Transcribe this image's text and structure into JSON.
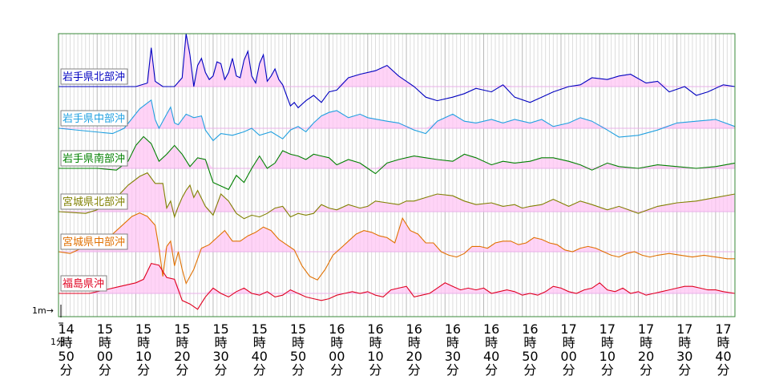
{
  "chart_data": {
    "type": "line",
    "title": "",
    "xlabel": "",
    "ylabel": "",
    "time_ticks": [
      [
        "14",
        "時",
        "50",
        "分"
      ],
      [
        "15",
        "時",
        "00",
        "分"
      ],
      [
        "15",
        "時",
        "10",
        "分"
      ],
      [
        "15",
        "時",
        "20",
        "分"
      ],
      [
        "15",
        "時",
        "30",
        "分"
      ],
      [
        "15",
        "時",
        "40",
        "分"
      ],
      [
        "15",
        "時",
        "50",
        "分"
      ],
      [
        "16",
        "時",
        "00",
        "分"
      ],
      [
        "16",
        "時",
        "10",
        "分"
      ],
      [
        "16",
        "時",
        "20",
        "分"
      ],
      [
        "16",
        "時",
        "30",
        "分"
      ],
      [
        "16",
        "時",
        "40",
        "分"
      ],
      [
        "16",
        "時",
        "50",
        "分"
      ],
      [
        "17",
        "時",
        "00",
        "分"
      ],
      [
        "17",
        "時",
        "10",
        "分"
      ],
      [
        "17",
        "時",
        "20",
        "分"
      ],
      [
        "17",
        "時",
        "30",
        "分"
      ],
      [
        "17",
        "時",
        "40",
        "分"
      ]
    ],
    "scale_label": "1m→",
    "time_scale_label": "1分",
    "x_unit": "minutes after 14:50",
    "x_range": [
      0,
      175
    ],
    "y_unit": "m",
    "series": [
      {
        "name": "岩手県北部沖",
        "color": "#0000c0",
        "x": [
          0,
          20,
          23,
          24,
          25,
          27,
          30,
          32,
          33,
          34,
          35,
          36,
          37,
          38,
          39,
          40,
          41,
          42,
          43,
          44,
          45,
          46,
          47,
          48,
          49,
          50,
          51,
          52,
          53,
          54,
          55,
          56,
          57,
          58,
          59,
          60,
          61,
          62,
          64,
          66,
          68,
          70,
          72,
          75,
          78,
          82,
          85,
          88,
          92,
          95,
          98,
          102,
          105,
          108,
          112,
          115,
          118,
          122,
          125,
          128,
          132,
          135,
          138,
          142,
          145,
          148,
          152,
          155,
          158,
          162,
          165,
          168,
          172,
          175
        ],
        "y": [
          0,
          0,
          0.2,
          2.2,
          0.3,
          0,
          0,
          0.5,
          3.0,
          1.8,
          0,
          1.2,
          1.6,
          0.8,
          0.4,
          0.6,
          1.4,
          1.3,
          0.4,
          0.8,
          1.6,
          0.6,
          0.5,
          1.5,
          2.0,
          0.6,
          0.2,
          1.3,
          1.8,
          0.3,
          0.6,
          1.0,
          0.4,
          0.1,
          -0.5,
          -1.1,
          -0.9,
          -1.2,
          -0.8,
          -0.5,
          -0.9,
          -0.3,
          -0.2,
          0.5,
          0.7,
          0.9,
          1.2,
          0.6,
          0,
          -0.6,
          -0.8,
          -0.6,
          -0.4,
          -0.1,
          -0.3,
          0.1,
          -0.6,
          -0.9,
          -0.6,
          -0.3,
          0,
          0.1,
          0.5,
          0.4,
          0.6,
          0.7,
          0.2,
          0.3,
          -0.3,
          0,
          -0.5,
          -0.3,
          0.1,
          0
        ]
      },
      {
        "name": "岩手県中部沖",
        "color": "#20a0e0",
        "x": [
          0,
          14,
          17,
          21,
          24,
          25,
          26,
          28,
          29,
          30,
          31,
          33,
          35,
          37,
          38,
          40,
          42,
          45,
          48,
          50,
          52,
          55,
          58,
          60,
          62,
          64,
          66,
          68,
          70,
          72,
          75,
          78,
          80,
          85,
          88,
          92,
          95,
          98,
          102,
          105,
          108,
          112,
          115,
          118,
          122,
          125,
          128,
          132,
          135,
          138,
          142,
          145,
          150,
          155,
          160,
          165,
          170,
          175
        ],
        "y": [
          0,
          -0.3,
          0,
          1.1,
          1.6,
          0.5,
          0,
          0.8,
          1.2,
          0.3,
          0.2,
          0.8,
          0.6,
          0.7,
          -0.1,
          -0.7,
          -0.3,
          -0.4,
          -0.2,
          0.0,
          -0.4,
          -0.2,
          -0.6,
          -0.1,
          0.1,
          -0.2,
          0.3,
          0.7,
          0.9,
          1.0,
          0.6,
          0.8,
          0.6,
          0.4,
          0.3,
          -0.1,
          -0.3,
          0.4,
          0.8,
          0.4,
          0.3,
          0.5,
          0.3,
          0.5,
          0.3,
          0.5,
          0.1,
          0.3,
          0.6,
          0.4,
          -0.1,
          -0.5,
          -0.4,
          -0.1,
          0.3,
          0.4,
          0.5,
          0.1
        ]
      },
      {
        "name": "岩手県南部沖",
        "color": "#008000",
        "x": [
          0,
          10,
          15,
          18,
          20,
          22,
          24,
          26,
          28,
          30,
          32,
          34,
          36,
          38,
          40,
          42,
          44,
          46,
          48,
          50,
          52,
          54,
          56,
          58,
          60,
          62,
          64,
          66,
          68,
          70,
          72,
          75,
          78,
          80,
          82,
          85,
          88,
          92,
          95,
          98,
          102,
          105,
          108,
          112,
          115,
          118,
          122,
          125,
          128,
          132,
          135,
          138,
          142,
          145,
          150,
          155,
          160,
          165,
          170,
          175
        ],
        "y": [
          0,
          0,
          -0.1,
          0.4,
          1.3,
          1.8,
          1.4,
          0.4,
          0.8,
          1.3,
          0.8,
          0.1,
          0.6,
          0.5,
          -0.8,
          -1.0,
          -1.2,
          -0.4,
          -0.8,
          0,
          0.7,
          0,
          0.3,
          1.0,
          0.8,
          0.7,
          0.5,
          0.8,
          0.7,
          0.6,
          0.2,
          0.5,
          0.3,
          0,
          -0.3,
          0.3,
          0.5,
          0.7,
          0.6,
          0.5,
          0.4,
          0.8,
          0.6,
          0.2,
          0.4,
          0.3,
          0.4,
          0.6,
          0.6,
          0.4,
          0.2,
          -0.1,
          0.3,
          0.1,
          0.0,
          0.2,
          0.1,
          0.0,
          0.1,
          0.3
        ]
      },
      {
        "name": "宮城県北部沖",
        "color": "#808000",
        "x": [
          0,
          7,
          10,
          15,
          18,
          21,
          23,
          25,
          27,
          28,
          29,
          30,
          31,
          32,
          33,
          34,
          35,
          36,
          38,
          40,
          42,
          44,
          46,
          48,
          50,
          52,
          54,
          56,
          58,
          60,
          62,
          64,
          66,
          68,
          70,
          72,
          75,
          78,
          80,
          82,
          85,
          88,
          90,
          92,
          95,
          98,
          102,
          105,
          108,
          112,
          115,
          118,
          120,
          122,
          125,
          128,
          130,
          132,
          135,
          138,
          142,
          145,
          150,
          155,
          160,
          165,
          170,
          175
        ],
        "y": [
          0,
          -0.1,
          0.1,
          0.8,
          1.5,
          2.0,
          2.2,
          1.6,
          1.6,
          0.2,
          0.6,
          -0.3,
          0.3,
          0.8,
          1.2,
          1.5,
          0.8,
          1.2,
          0.3,
          -0.2,
          1.0,
          0.6,
          -0.1,
          -0.4,
          -0.2,
          -0.3,
          -0.1,
          0.2,
          0.3,
          -0.3,
          -0.1,
          -0.2,
          -0.1,
          0.4,
          0.2,
          0.1,
          0.4,
          0.2,
          0.3,
          0.6,
          0.5,
          0.4,
          0.6,
          0.6,
          0.8,
          1.0,
          0.9,
          0.6,
          0.4,
          0.5,
          0.3,
          0.4,
          0.2,
          0.3,
          0.4,
          0.7,
          0.5,
          0.3,
          0.6,
          0.4,
          0.1,
          0.3,
          -0.1,
          0.3,
          0.5,
          0.6,
          0.8,
          1.0
        ]
      },
      {
        "name": "宮城県中部沖",
        "color": "#e07000",
        "x": [
          0,
          3,
          6,
          10,
          14,
          17,
          19,
          21,
          23,
          25,
          26,
          27,
          28,
          29,
          30,
          31,
          32,
          33,
          35,
          37,
          39,
          41,
          43,
          45,
          47,
          49,
          51,
          53,
          55,
          57,
          59,
          61,
          63,
          65,
          67,
          69,
          71,
          73,
          75,
          77,
          79,
          81,
          83,
          85,
          87,
          89,
          91,
          93,
          95,
          97,
          99,
          101,
          103,
          105,
          107,
          109,
          111,
          113,
          115,
          117,
          119,
          121,
          123,
          125,
          127,
          129,
          131,
          133,
          135,
          137,
          139,
          141,
          143,
          145,
          147,
          149,
          151,
          153,
          155,
          158,
          161,
          164,
          167,
          170,
          173,
          175
        ],
        "y": [
          0,
          -0.1,
          0.2,
          0.6,
          1.0,
          1.6,
          2.0,
          2.2,
          2.0,
          1.5,
          0.2,
          -1.4,
          0.3,
          0.6,
          -0.8,
          0.0,
          -1.0,
          -1.8,
          -1.0,
          0.2,
          0.4,
          0.8,
          1.2,
          0.6,
          0.6,
          0.9,
          1.1,
          1.4,
          1.2,
          0.7,
          0.4,
          0.1,
          -0.8,
          -1.4,
          -1.6,
          -1.0,
          -0.2,
          0.2,
          0.6,
          1.0,
          1.2,
          1.1,
          0.9,
          0.8,
          0.5,
          1.9,
          1.2,
          1.0,
          0.5,
          0.5,
          0.0,
          -0.2,
          -0.3,
          -0.1,
          0.3,
          0.3,
          0.2,
          0.5,
          0.6,
          0.6,
          0.4,
          0.5,
          0.8,
          0.7,
          0.5,
          0.4,
          0.1,
          0.0,
          0.2,
          0.3,
          0.2,
          0.0,
          -0.2,
          -0.3,
          -0.1,
          0.0,
          -0.2,
          -0.3,
          -0.2,
          -0.1,
          -0.2,
          -0.3,
          -0.2,
          -0.3,
          -0.4,
          -0.4
        ]
      },
      {
        "name": "福島県沖",
        "color": "#e00020",
        "x": [
          0,
          8,
          12,
          16,
          20,
          22,
          24,
          26,
          28,
          30,
          32,
          34,
          36,
          38,
          40,
          42,
          44,
          46,
          48,
          50,
          52,
          54,
          56,
          58,
          60,
          62,
          64,
          66,
          68,
          70,
          72,
          74,
          76,
          78,
          80,
          82,
          84,
          86,
          88,
          90,
          92,
          94,
          96,
          98,
          100,
          102,
          104,
          106,
          108,
          110,
          112,
          114,
          116,
          118,
          120,
          122,
          124,
          126,
          128,
          130,
          132,
          134,
          136,
          138,
          140,
          142,
          144,
          146,
          148,
          150,
          152,
          154,
          156,
          158,
          160,
          162,
          164,
          166,
          168,
          170,
          172,
          175
        ],
        "y": [
          0,
          0,
          0.2,
          0.4,
          0.6,
          0.8,
          1.7,
          1.6,
          0.9,
          0.8,
          -0.4,
          -0.6,
          -0.9,
          -0.2,
          0.3,
          0.0,
          -0.2,
          0.1,
          0.3,
          0.0,
          -0.1,
          0.1,
          -0.2,
          -0.1,
          0.2,
          0.0,
          -0.2,
          -0.3,
          -0.4,
          -0.3,
          -0.1,
          0.0,
          0.1,
          0.0,
          0.1,
          -0.1,
          -0.2,
          0.2,
          0.3,
          0.4,
          -0.2,
          -0.1,
          0.0,
          0.3,
          0.6,
          0.4,
          0.2,
          0.3,
          0.2,
          0.3,
          0.0,
          0.1,
          0.2,
          0.1,
          -0.1,
          0.0,
          -0.1,
          0.1,
          0.4,
          0.3,
          0.1,
          0.0,
          0.2,
          0.3,
          0.6,
          0.2,
          0.1,
          0.3,
          0.0,
          0.1,
          -0.1,
          0.0,
          0.1,
          0.2,
          0.3,
          0.4,
          0.4,
          0.3,
          0.2,
          0.2,
          0.1,
          0.0
        ]
      }
    ]
  }
}
